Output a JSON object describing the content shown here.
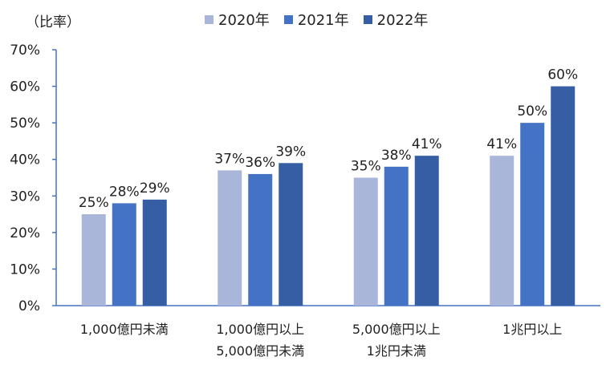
{
  "chart_data": {
    "type": "bar",
    "ylabel": "（比率）",
    "ylim": [
      0,
      70
    ],
    "y_ticks": [
      "0%",
      "10%",
      "20%",
      "30%",
      "40%",
      "50%",
      "60%",
      "70%"
    ],
    "categories": [
      [
        "1,000億円未満"
      ],
      [
        "1,000億円以上",
        "5,000億円未満"
      ],
      [
        "5,000億円以上",
        "1兆円未満"
      ],
      [
        "1兆円以上"
      ]
    ],
    "series": [
      {
        "name": "2020年",
        "color": "#a9b6da",
        "values": [
          25,
          37,
          35,
          41
        ],
        "labels": [
          "25%",
          "37%",
          "35%",
          "41%"
        ]
      },
      {
        "name": "2021年",
        "color": "#4472c4",
        "values": [
          28,
          36,
          38,
          50
        ],
        "labels": [
          "28%",
          "36%",
          "38%",
          "50%"
        ]
      },
      {
        "name": "2022年",
        "color": "#355ea4",
        "values": [
          29,
          39,
          41,
          60
        ],
        "labels": [
          "29%",
          "39%",
          "41%",
          "60%"
        ]
      }
    ],
    "legend_position": "top"
  }
}
